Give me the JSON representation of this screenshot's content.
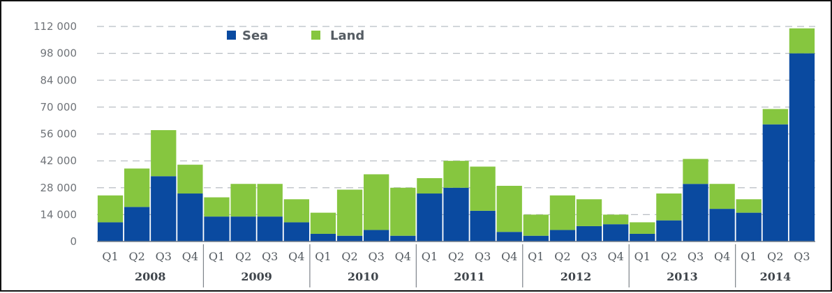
{
  "colors": {
    "sea": "#0a4aa0",
    "land": "#86c63f",
    "grid": "#b8bdc3",
    "axis": "#777f87"
  },
  "legend": {
    "items": [
      {
        "label": "Sea",
        "color": "#0a4aa0"
      },
      {
        "label": "Land",
        "color": "#86c63f"
      }
    ]
  },
  "chart_data": {
    "type": "bar",
    "stacked": true,
    "legend_position": "top-left",
    "grid": true,
    "ylim": [
      0,
      112000
    ],
    "yticks": [
      0,
      14000,
      28000,
      42000,
      56000,
      70000,
      84000,
      98000,
      112000
    ],
    "ytick_labels": [
      "0",
      "14 000",
      "28 000",
      "42 000",
      "56 000",
      "70 000",
      "84 000",
      "98 000",
      "112 000"
    ],
    "categories": [
      "Q1",
      "Q2",
      "Q3",
      "Q4",
      "Q1",
      "Q2",
      "Q3",
      "Q4",
      "Q1",
      "Q2",
      "Q3",
      "Q4",
      "Q1",
      "Q2",
      "Q3",
      "Q4",
      "Q1",
      "Q2",
      "Q3",
      "Q4",
      "Q1",
      "Q2",
      "Q3",
      "Q4",
      "Q1",
      "Q2",
      "Q3"
    ],
    "groups": [
      {
        "label": "2008",
        "count": 4
      },
      {
        "label": "2009",
        "count": 4
      },
      {
        "label": "2010",
        "count": 4
      },
      {
        "label": "2011",
        "count": 4
      },
      {
        "label": "2012",
        "count": 4
      },
      {
        "label": "2013",
        "count": 4
      },
      {
        "label": "2014",
        "count": 3
      }
    ],
    "series": [
      {
        "name": "Sea",
        "values": [
          10000,
          18000,
          34000,
          25000,
          13000,
          13000,
          13000,
          10000,
          4000,
          3000,
          6000,
          3000,
          25000,
          28000,
          16000,
          5000,
          3000,
          6000,
          8000,
          9000,
          4000,
          11000,
          30000,
          17000,
          15000,
          61000,
          98000
        ]
      },
      {
        "name": "Land",
        "values": [
          14000,
          20000,
          24000,
          15000,
          10000,
          17000,
          17000,
          12000,
          11000,
          24000,
          29000,
          25000,
          8000,
          14000,
          23000,
          24000,
          11000,
          18000,
          14000,
          5000,
          6000,
          14000,
          13000,
          13000,
          7000,
          8000,
          13000
        ]
      }
    ]
  }
}
